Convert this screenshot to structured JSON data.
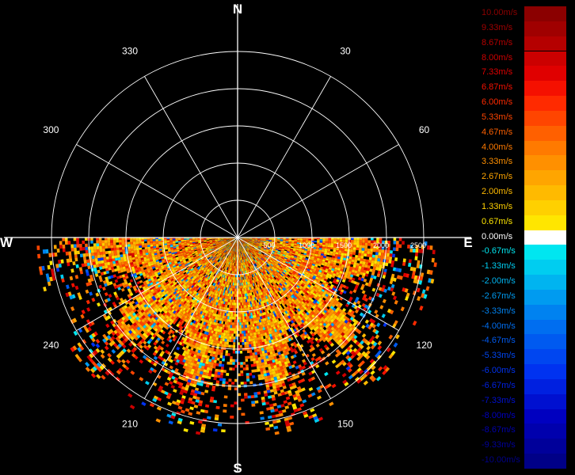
{
  "compass": {
    "north": "N",
    "south": "S",
    "east": "E",
    "west": "W"
  },
  "bearings": [
    {
      "deg": 30,
      "label": "30"
    },
    {
      "deg": 60,
      "label": "60"
    },
    {
      "deg": 120,
      "label": "120"
    },
    {
      "deg": 150,
      "label": "150"
    },
    {
      "deg": 210,
      "label": "210"
    },
    {
      "deg": 240,
      "label": "240"
    },
    {
      "deg": 300,
      "label": "300"
    },
    {
      "deg": 330,
      "label": "330"
    }
  ],
  "chart_data": {
    "type": "heatmap",
    "projection": "polar",
    "range_max": 2500,
    "range_rings": [
      500,
      1000,
      1500,
      2000,
      2500
    ],
    "range_ring_labels": [
      "500",
      "1000",
      "1500",
      "2000",
      "2500"
    ],
    "spoke_interval_deg": 30,
    "sector_deg": [
      90,
      270
    ],
    "value_unit": "m/s",
    "colorscale": [
      {
        "label": "10.00m/s",
        "value": 10.0,
        "color": "#8b0000"
      },
      {
        "label": "9.33m/s",
        "value": 9.33,
        "color": "#a00000"
      },
      {
        "label": "8.67m/s",
        "value": 8.67,
        "color": "#b50000"
      },
      {
        "label": "8.00m/s",
        "value": 8.0,
        "color": "#cc0000"
      },
      {
        "label": "7.33m/s",
        "value": 7.33,
        "color": "#e00000"
      },
      {
        "label": "6.87m/s",
        "value": 6.87,
        "color": "#f51000"
      },
      {
        "label": "6.00m/s",
        "value": 6.0,
        "color": "#ff2a00"
      },
      {
        "label": "5.33m/s",
        "value": 5.33,
        "color": "#ff4500"
      },
      {
        "label": "4.67m/s",
        "value": 4.67,
        "color": "#ff6000"
      },
      {
        "label": "4.00m/s",
        "value": 4.0,
        "color": "#ff7a00"
      },
      {
        "label": "3.33m/s",
        "value": 3.33,
        "color": "#ff9000"
      },
      {
        "label": "2.67m/s",
        "value": 2.67,
        "color": "#ffa500"
      },
      {
        "label": "2.00m/s",
        "value": 2.0,
        "color": "#ffba00"
      },
      {
        "label": "1.33m/s",
        "value": 1.33,
        "color": "#ffd000"
      },
      {
        "label": "0.67m/s",
        "value": 0.67,
        "color": "#ffe600"
      },
      {
        "label": "0.00m/s",
        "value": 0.0,
        "color": "#ffffff"
      },
      {
        "label": "-0.67m/s",
        "value": -0.67,
        "color": "#00e6f0"
      },
      {
        "label": "-1.33m/s",
        "value": -1.33,
        "color": "#00cdf0"
      },
      {
        "label": "-2.00m/s",
        "value": -2.0,
        "color": "#00b4f0"
      },
      {
        "label": "-2.67m/s",
        "value": -2.67,
        "color": "#009bf0"
      },
      {
        "label": "-3.33m/s",
        "value": -3.33,
        "color": "#0082f0"
      },
      {
        "label": "-4.00m/s",
        "value": -4.0,
        "color": "#006ef0"
      },
      {
        "label": "-4.67m/s",
        "value": -4.67,
        "color": "#005af0"
      },
      {
        "label": "-5.33m/s",
        "value": -5.33,
        "color": "#0046f0"
      },
      {
        "label": "-6.00m/s",
        "value": -6.0,
        "color": "#0032f0"
      },
      {
        "label": "-6.67m/s",
        "value": -6.67,
        "color": "#0020e0"
      },
      {
        "label": "-7.33m/s",
        "value": -7.33,
        "color": "#0010d0"
      },
      {
        "label": "-8.00m/s",
        "value": -8.0,
        "color": "#0000c0"
      },
      {
        "label": "-8.67m/s",
        "value": -8.67,
        "color": "#0000ad"
      },
      {
        "label": "-9.33m/s",
        "value": -9.33,
        "color": "#00009a"
      },
      {
        "label": "-10.00m/s",
        "value": -10.0,
        "color": "#000087"
      }
    ]
  }
}
